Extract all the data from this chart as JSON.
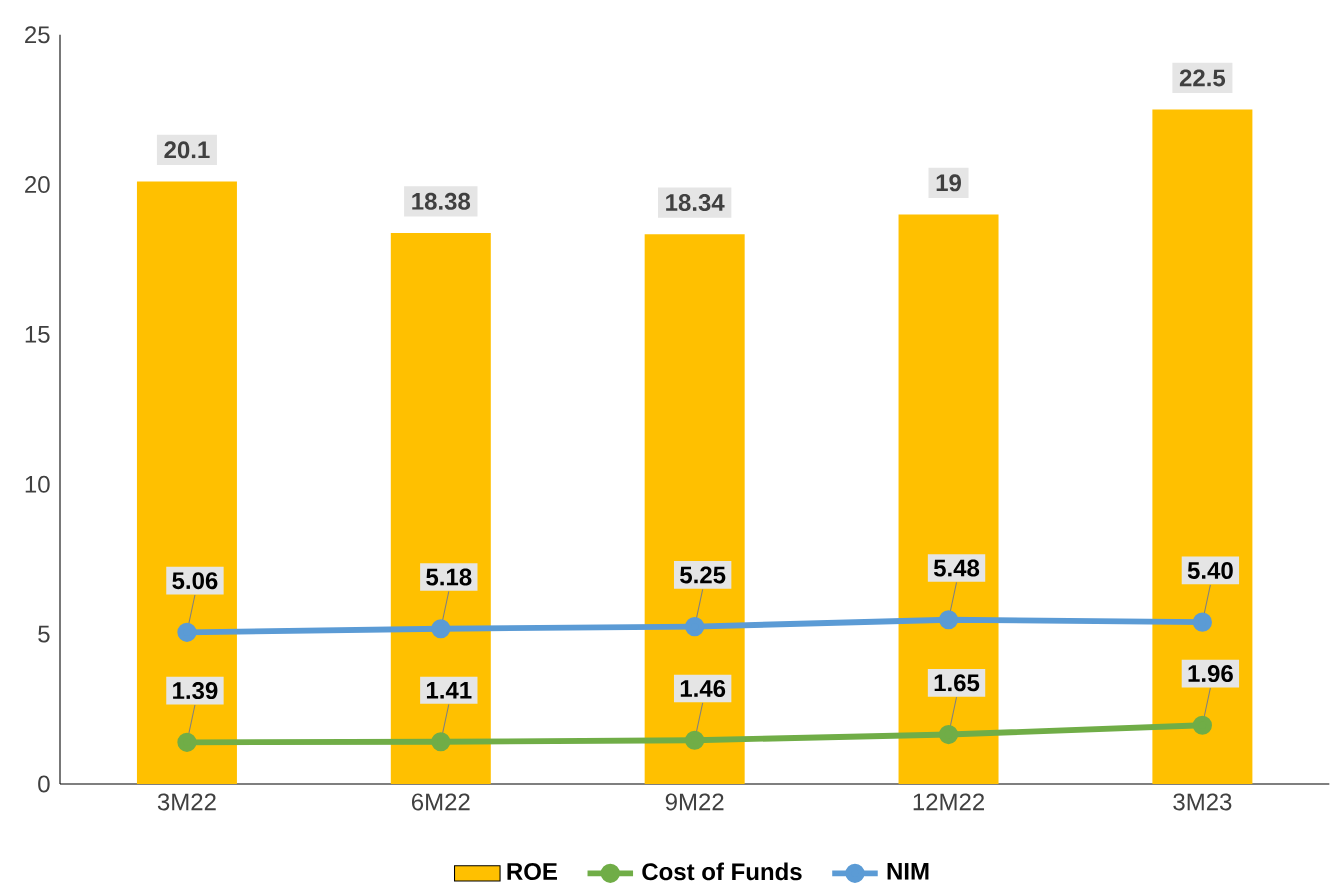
{
  "chart_data": {
    "type": "bar",
    "categories": [
      "3M22",
      "6M22",
      "9M22",
      "12M22",
      "3M23"
    ],
    "series": [
      {
        "name": "ROE",
        "color": "#ffc000",
        "values": [
          20.1,
          18.38,
          18.34,
          19,
          22.5
        ],
        "value_labels": [
          "20.1",
          "18.38",
          "18.34",
          "19",
          "22.5"
        ]
      },
      {
        "name": "Cost of Funds",
        "type": "line",
        "color": "#70ad47",
        "values": [
          1.39,
          1.41,
          1.46,
          1.65,
          1.96
        ],
        "value_labels": [
          "1.39",
          "1.41",
          "1.46",
          "1.65",
          "1.96"
        ]
      },
      {
        "name": "NIM",
        "type": "line",
        "color": "#5b9bd5",
        "values": [
          5.06,
          5.18,
          5.25,
          5.48,
          5.4
        ],
        "value_labels": [
          "5.06",
          "5.18",
          "5.25",
          "5.48",
          "5.40"
        ]
      }
    ],
    "ylim": [
      0,
      25
    ],
    "yticks": [
      0,
      5,
      10,
      15,
      20,
      25
    ],
    "grid": false,
    "legend": "bottom",
    "marker": "circle"
  }
}
